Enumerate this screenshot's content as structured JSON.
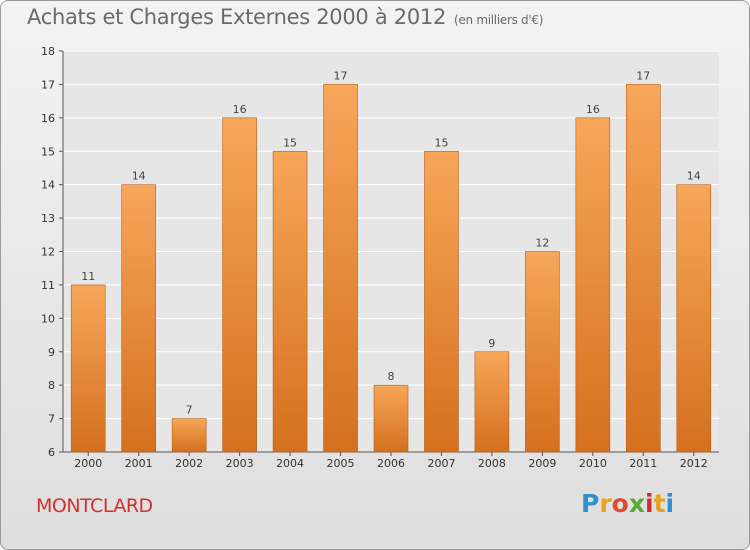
{
  "title": "Achats et Charges Externes 2000 à 2012",
  "subtitle": "(en milliers d'€)",
  "commune": "MONTCLARD",
  "logo": {
    "letters": [
      "P",
      "r",
      "o",
      "x",
      "i",
      "t",
      "i"
    ],
    "colors": [
      "#2f8fd0",
      "#e8a21c",
      "#e14b2c",
      "#5aa834",
      "#d8292f",
      "#e8a21c",
      "#2f8fd0"
    ]
  },
  "colors": {
    "bar_light": "#f7a65a",
    "bar_dark": "#d4701e",
    "bar_edge": "#b8601a",
    "grid": "#ffffff",
    "plot_bg": "#e6e6e6"
  },
  "chart_data": {
    "type": "bar",
    "title": "Achats et Charges Externes 2000 à 2012",
    "subtitle": "(en milliers d'€)",
    "categories": [
      "2000",
      "2001",
      "2002",
      "2003",
      "2004",
      "2005",
      "2006",
      "2007",
      "2008",
      "2009",
      "2010",
      "2011",
      "2012"
    ],
    "values": [
      11,
      14,
      7,
      16,
      15,
      17,
      8,
      15,
      9,
      12,
      16,
      17,
      14
    ],
    "ylim": [
      6,
      18
    ],
    "yticks": [
      6,
      7,
      8,
      9,
      10,
      11,
      12,
      13,
      14,
      15,
      16,
      17,
      18
    ],
    "xlabel": "",
    "ylabel": "",
    "grid": true
  }
}
